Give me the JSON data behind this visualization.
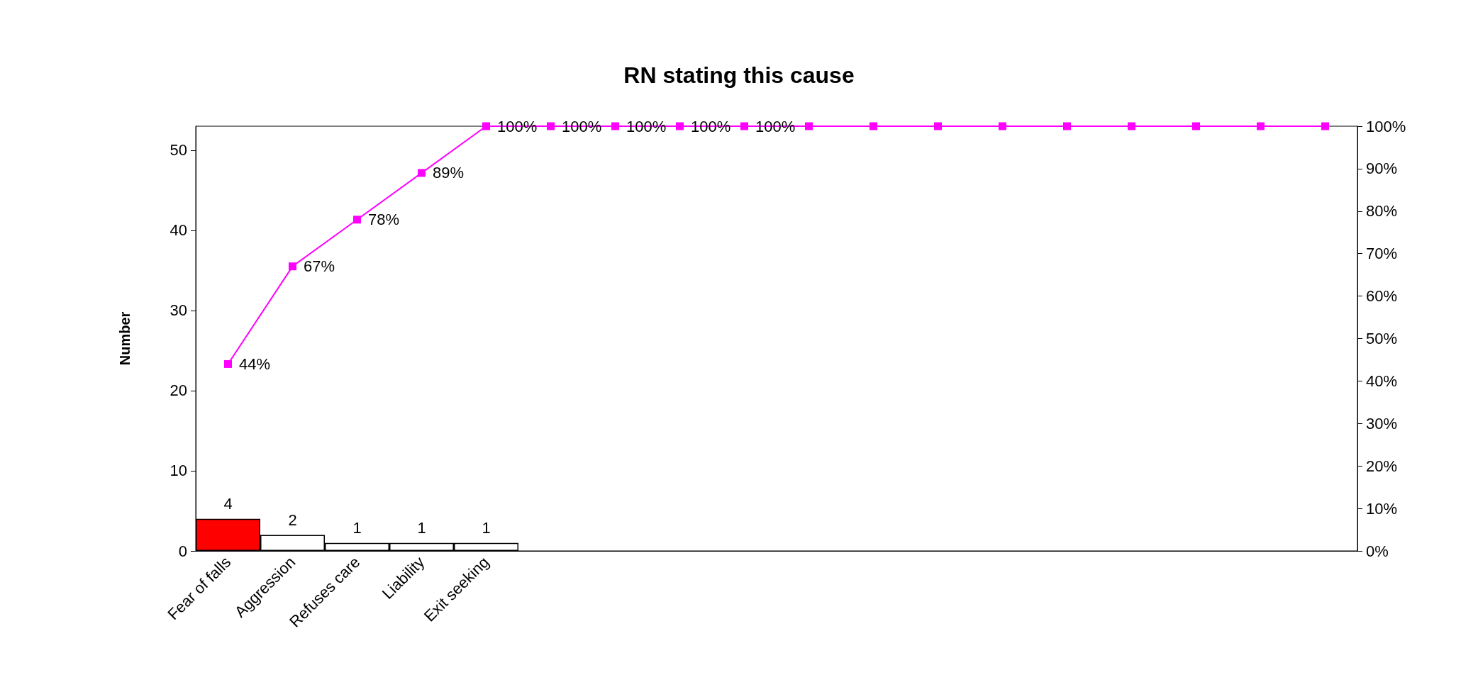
{
  "chart_data": {
    "type": "bar",
    "title": "RN stating this cause",
    "ylabel": "Number",
    "categories": [
      "Fear of falls",
      "Aggression",
      "Refuses care",
      "Liability",
      "Exit seeking",
      null,
      null,
      null,
      null,
      null,
      null,
      null,
      null,
      null,
      null,
      null,
      null,
      null
    ],
    "series": [
      {
        "colors": [
          "#ff0000",
          "#ffffff",
          "#ffffff",
          "#ffffff",
          "#ffffff",
          "#ffffff",
          "#ffffff",
          "#ffffff",
          "#ffffff",
          "#ffffff",
          "#ffffff",
          "#ffffff",
          "#ffffff",
          "#ffffff",
          "#ffffff",
          "#ffffff",
          "#ffffff",
          "#ffffff"
        ],
        "values": [
          4,
          2,
          1,
          1,
          1,
          null,
          null,
          null,
          null,
          null,
          null,
          null,
          null,
          null,
          null,
          null,
          null,
          null
        ],
        "value_labels": [
          "4",
          "2",
          "1",
          "1",
          "1",
          null,
          null,
          null,
          null,
          null,
          null,
          null,
          null,
          null,
          null,
          null,
          null,
          null
        ]
      },
      {
        "type": "line",
        "axis": "y2",
        "color": "#ff00ff",
        "marker": "square",
        "values": [
          44,
          67,
          78,
          89,
          100,
          100,
          100,
          100,
          100,
          100,
          100,
          100,
          100,
          100,
          100,
          100,
          100,
          100
        ],
        "value_labels": [
          "44%",
          "67%",
          "78%",
          "89%",
          "100%",
          "100%",
          "100%",
          "100%",
          "100%",
          null,
          null,
          null,
          null,
          null,
          null,
          null,
          null,
          null
        ]
      }
    ],
    "ylim": [
      0,
      53
    ],
    "yticks": [
      0,
      10,
      20,
      30,
      40,
      50
    ],
    "y2lim": [
      0,
      100
    ],
    "y2ticks": [
      {
        "value": 0,
        "label": "0%"
      },
      {
        "value": 10,
        "label": "10%"
      },
      {
        "value": 20,
        "label": "20%"
      },
      {
        "value": 30,
        "label": "30%"
      },
      {
        "value": 40,
        "label": "40%"
      },
      {
        "value": 50,
        "label": "50%"
      },
      {
        "value": 60,
        "label": "60%"
      },
      {
        "value": 70,
        "label": "70%"
      },
      {
        "value": 80,
        "label": "80%"
      },
      {
        "value": 90,
        "label": "90%"
      },
      {
        "value": 100,
        "label": "100%"
      }
    ],
    "grid": false
  }
}
